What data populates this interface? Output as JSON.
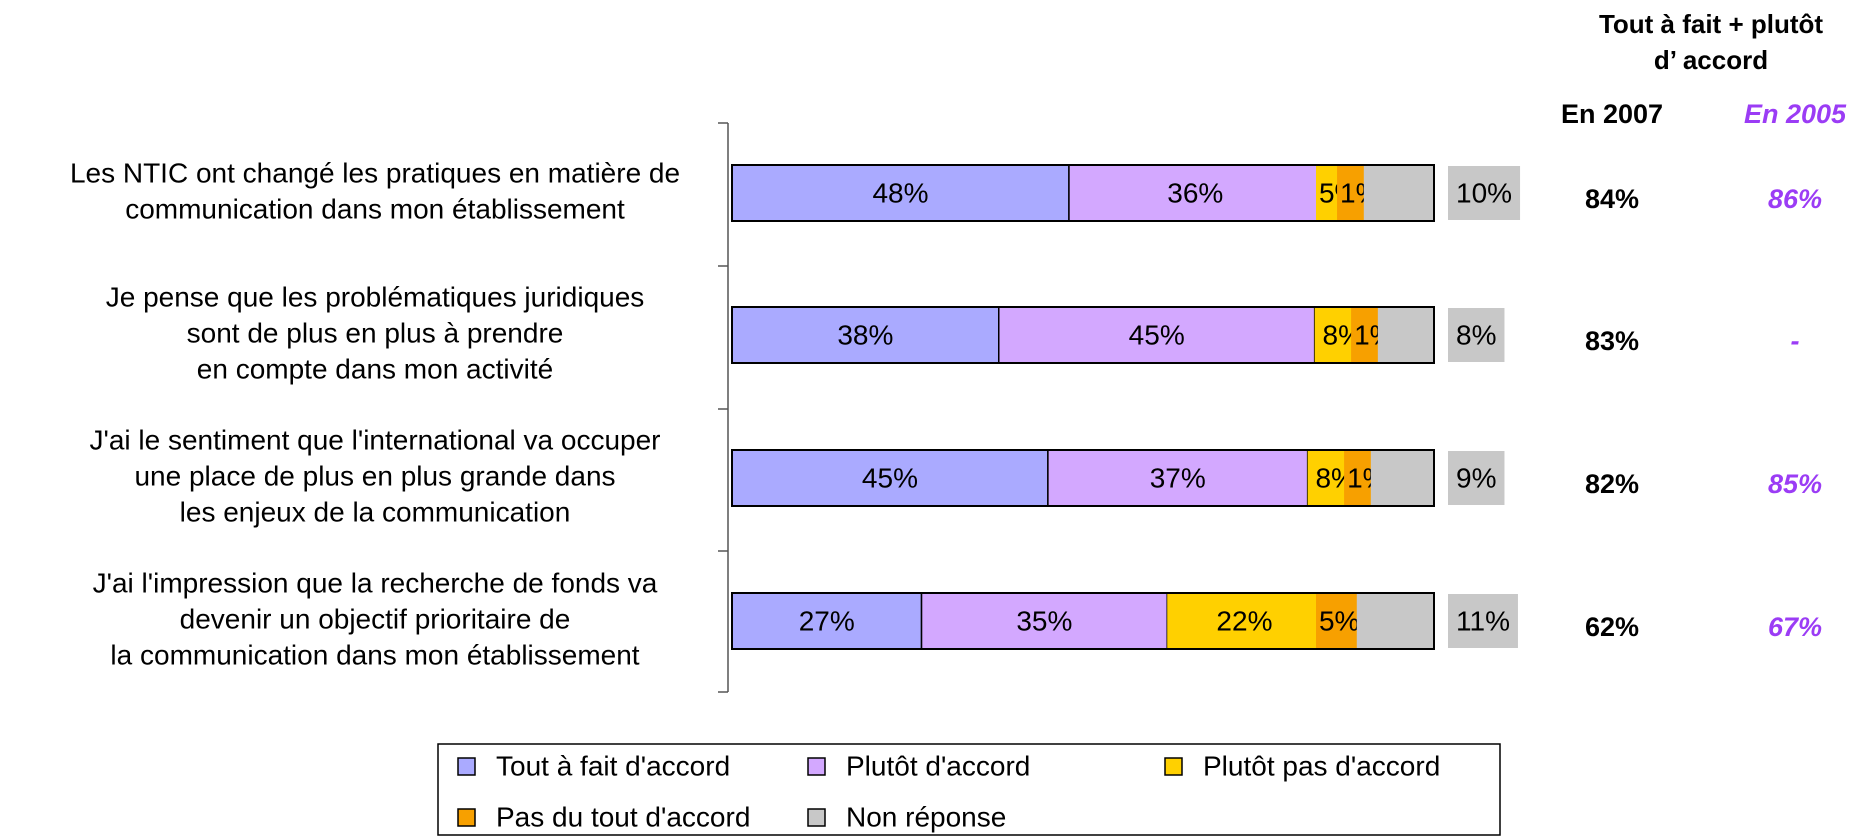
{
  "chart_data": {
    "type": "stacked-barh",
    "categories": [
      [
        "Les NTIC ont changé les pratiques en matière de",
        "communication dans mon établissement"
      ],
      [
        "Je pense que les problématiques juridiques",
        "sont de plus en plus à prendre",
        "en compte dans mon activité"
      ],
      [
        "J'ai le sentiment que l'international va occuper",
        "une place de plus en plus grande dans",
        "les enjeux de la communication"
      ],
      [
        "J'ai l'impression que la recherche de fonds va",
        "devenir un objectif prioritaire de",
        "la communication dans mon établissement"
      ]
    ],
    "series": [
      {
        "name": "Tout à fait d'accord",
        "color": "#aaaaff",
        "values": [
          48,
          38,
          45,
          27
        ],
        "value_labels": [
          "48%",
          "38%",
          "45%",
          "27%"
        ]
      },
      {
        "name": "Plutôt d'accord",
        "color": "#d3a8ff",
        "values": [
          36,
          45,
          37,
          35
        ],
        "value_labels": [
          "36%",
          "45%",
          "37%",
          "35%"
        ]
      },
      {
        "name": "Plutôt pas d'accord",
        "color": "#ffd000",
        "values": [
          5,
          8,
          8,
          22
        ],
        "value_labels": [
          "5%",
          "8%",
          "8%",
          "22%"
        ]
      },
      {
        "name": "Pas du tout d'accord",
        "color": "#f7a000",
        "values": [
          1,
          1,
          1,
          5
        ],
        "value_labels": [
          "1%",
          "1%",
          "1%",
          "5%"
        ]
      },
      {
        "name": "Non réponse",
        "color": "#c8c8c8",
        "values": [
          10,
          8,
          9,
          11
        ],
        "value_labels": [
          "10%",
          "8%",
          "9%",
          "11%"
        ],
        "outside": true
      }
    ],
    "xlim": [
      0,
      100
    ],
    "legend": "bottom"
  },
  "summary": {
    "title": [
      "Tout à fait + plutôt",
      "d’ accord"
    ],
    "columns": [
      {
        "name": "En 2007",
        "color": "#000000",
        "values": [
          84,
          83,
          82,
          62
        ],
        "value_labels": [
          "84%",
          "83%",
          "82%",
          "62%"
        ]
      },
      {
        "name": "En 2005",
        "color": "#9b3cf5",
        "italic": true,
        "values": [
          86,
          null,
          85,
          67
        ],
        "value_labels": [
          "86%",
          "-",
          "85%",
          "67%"
        ]
      }
    ]
  }
}
